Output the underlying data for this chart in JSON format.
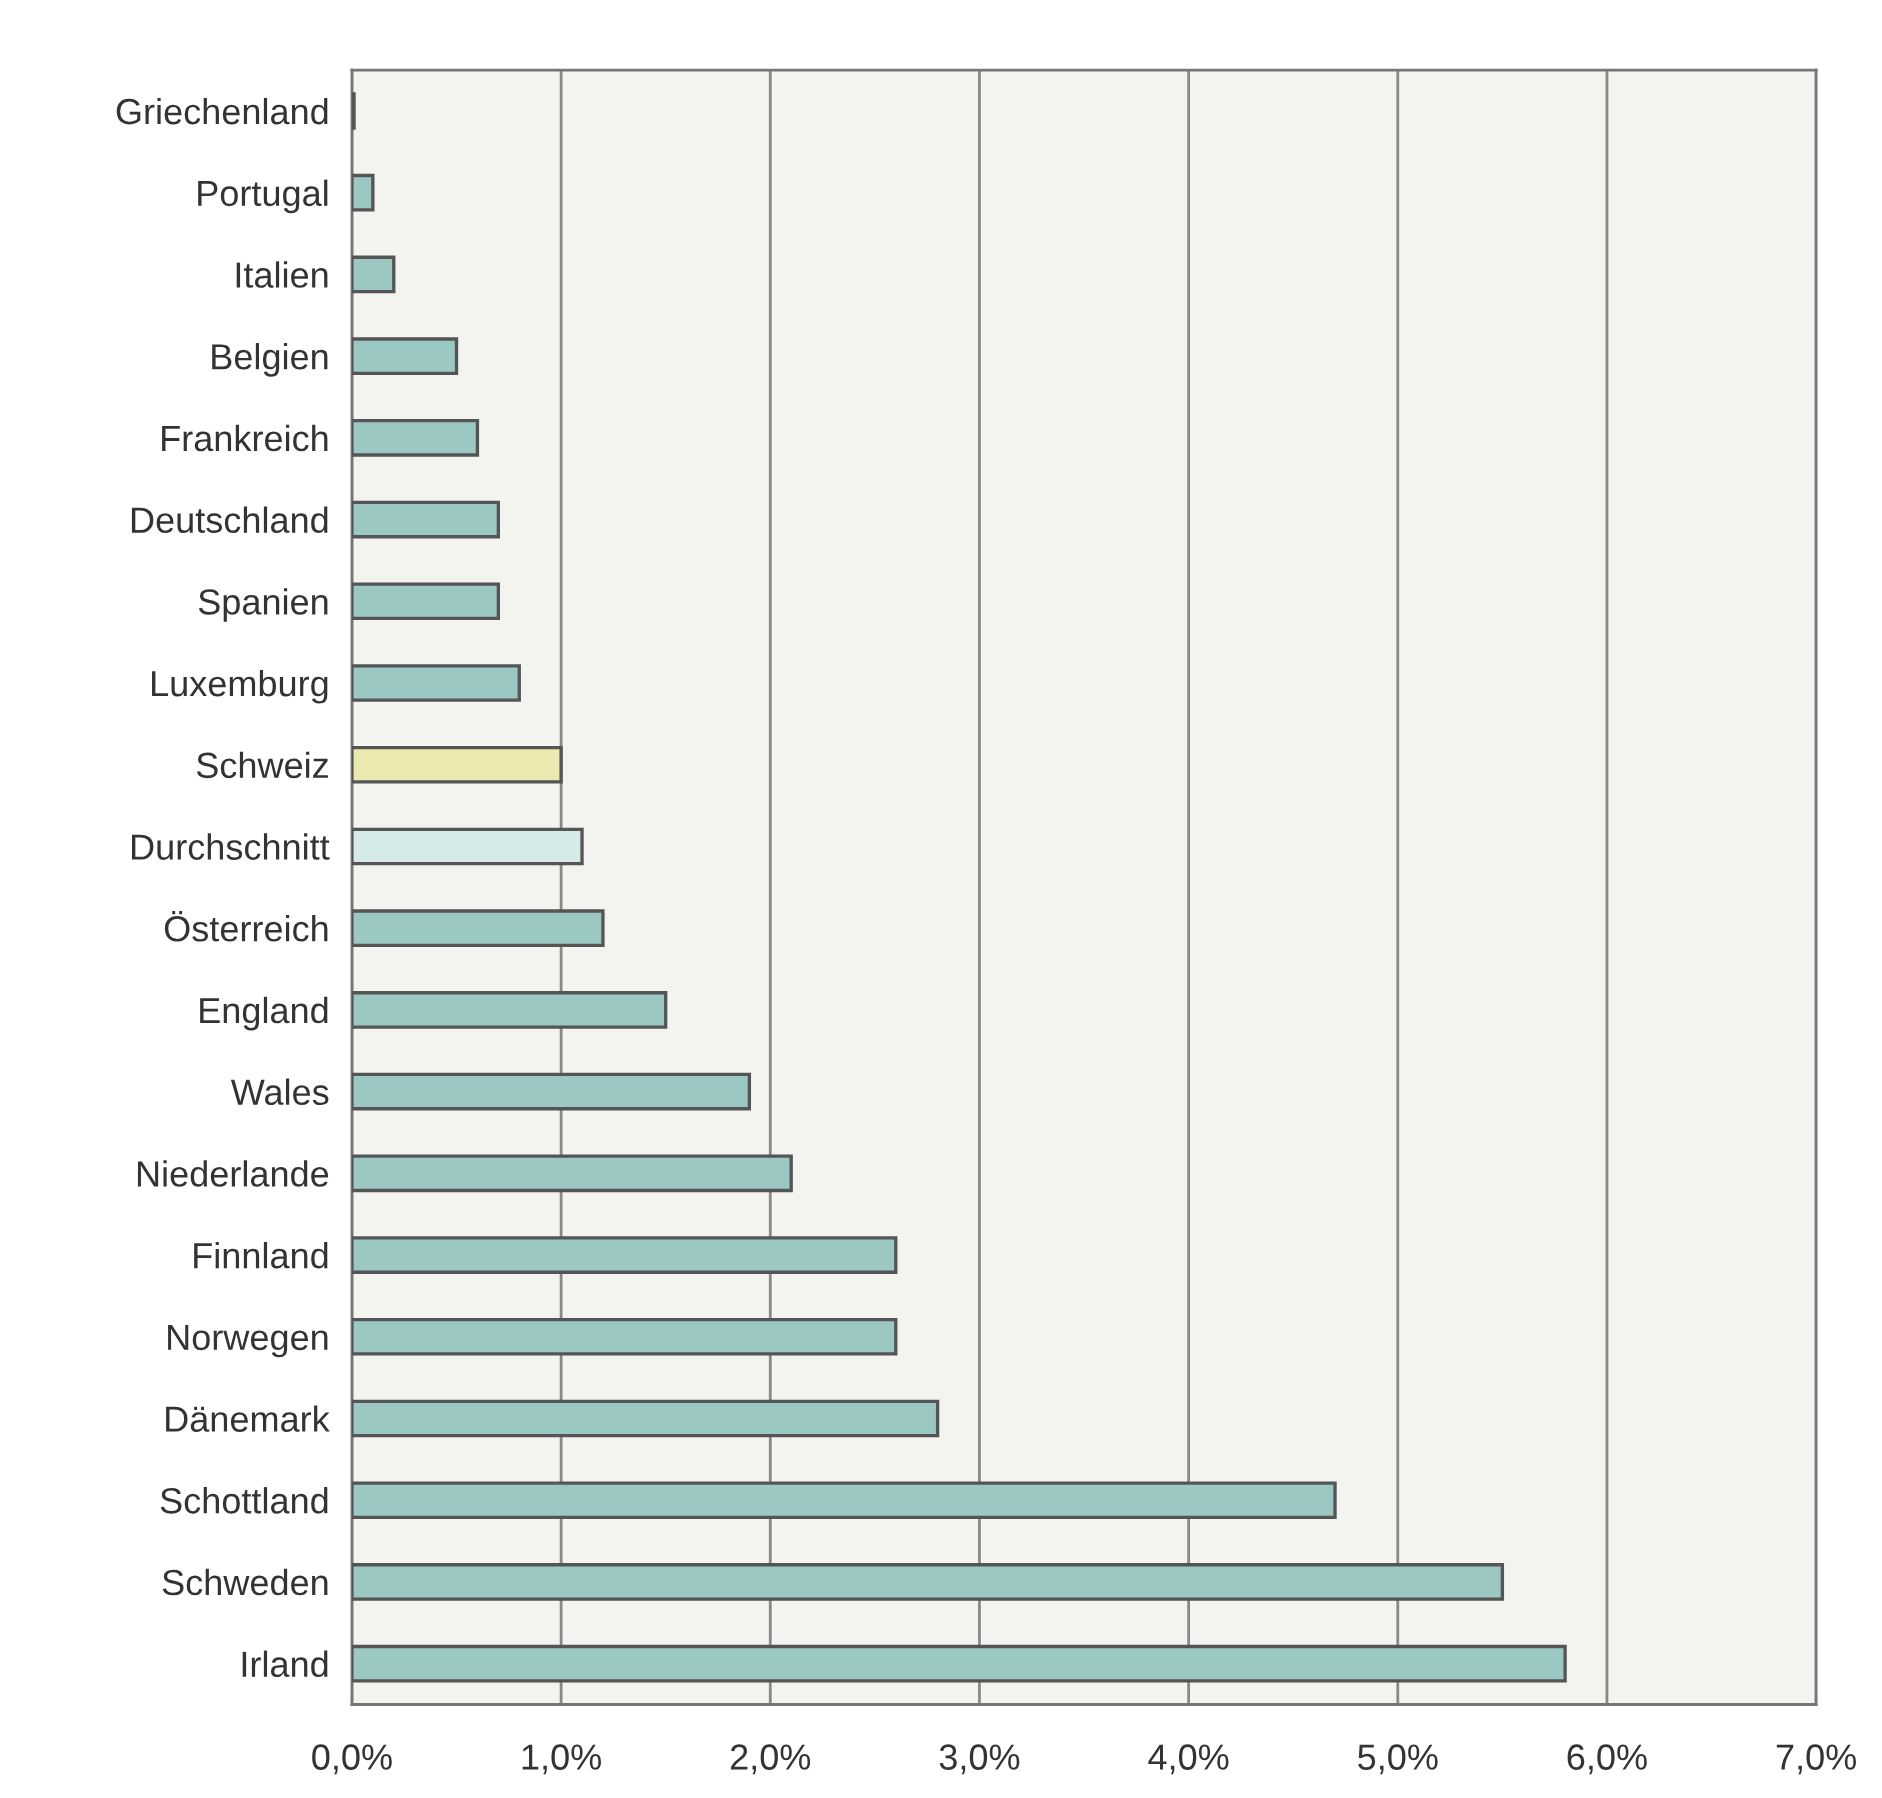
{
  "chart_data": {
    "type": "bar",
    "orientation": "horizontal",
    "categories": [
      "Griechenland",
      "Portugal",
      "Italien",
      "Belgien",
      "Frankreich",
      "Deutschland",
      "Spanien",
      "Luxemburg",
      "Schweiz",
      "Durchschnitt",
      "Österreich",
      "England",
      "Wales",
      "Niederlande",
      "Finnland",
      "Norwegen",
      "Dänemark",
      "Schottland",
      "Schweden",
      "Irland"
    ],
    "values": [
      0.01,
      0.1,
      0.2,
      0.5,
      0.6,
      0.7,
      0.7,
      0.8,
      1.0,
      1.1,
      1.2,
      1.5,
      1.9,
      2.1,
      2.6,
      2.6,
      2.8,
      4.7,
      5.5,
      5.8
    ],
    "colors": [
      "#9cc8c4",
      "#9cc8c4",
      "#9cc8c4",
      "#9cc8c4",
      "#9cc8c4",
      "#9cc8c4",
      "#9cc8c4",
      "#9cc8c4",
      "#ece9b0",
      "#d6ebe8",
      "#9cc8c4",
      "#9cc8c4",
      "#9cc8c4",
      "#9cc8c4",
      "#9cc8c4",
      "#9cc8c4",
      "#9cc8c4",
      "#9cc8c4",
      "#9cc8c4",
      "#9cc8c4"
    ],
    "xlim": [
      0,
      7
    ],
    "xticks": [
      {
        "value": 0,
        "label": "0,0%"
      },
      {
        "value": 1,
        "label": "1,0%"
      },
      {
        "value": 2,
        "label": "2,0%"
      },
      {
        "value": 3,
        "label": "3,0%"
      },
      {
        "value": 4,
        "label": "4,0%"
      },
      {
        "value": 5,
        "label": "5,0%"
      },
      {
        "value": 6,
        "label": "6,0%"
      },
      {
        "value": 7,
        "label": "7,0%"
      }
    ],
    "grid": "x",
    "legend": false
  }
}
